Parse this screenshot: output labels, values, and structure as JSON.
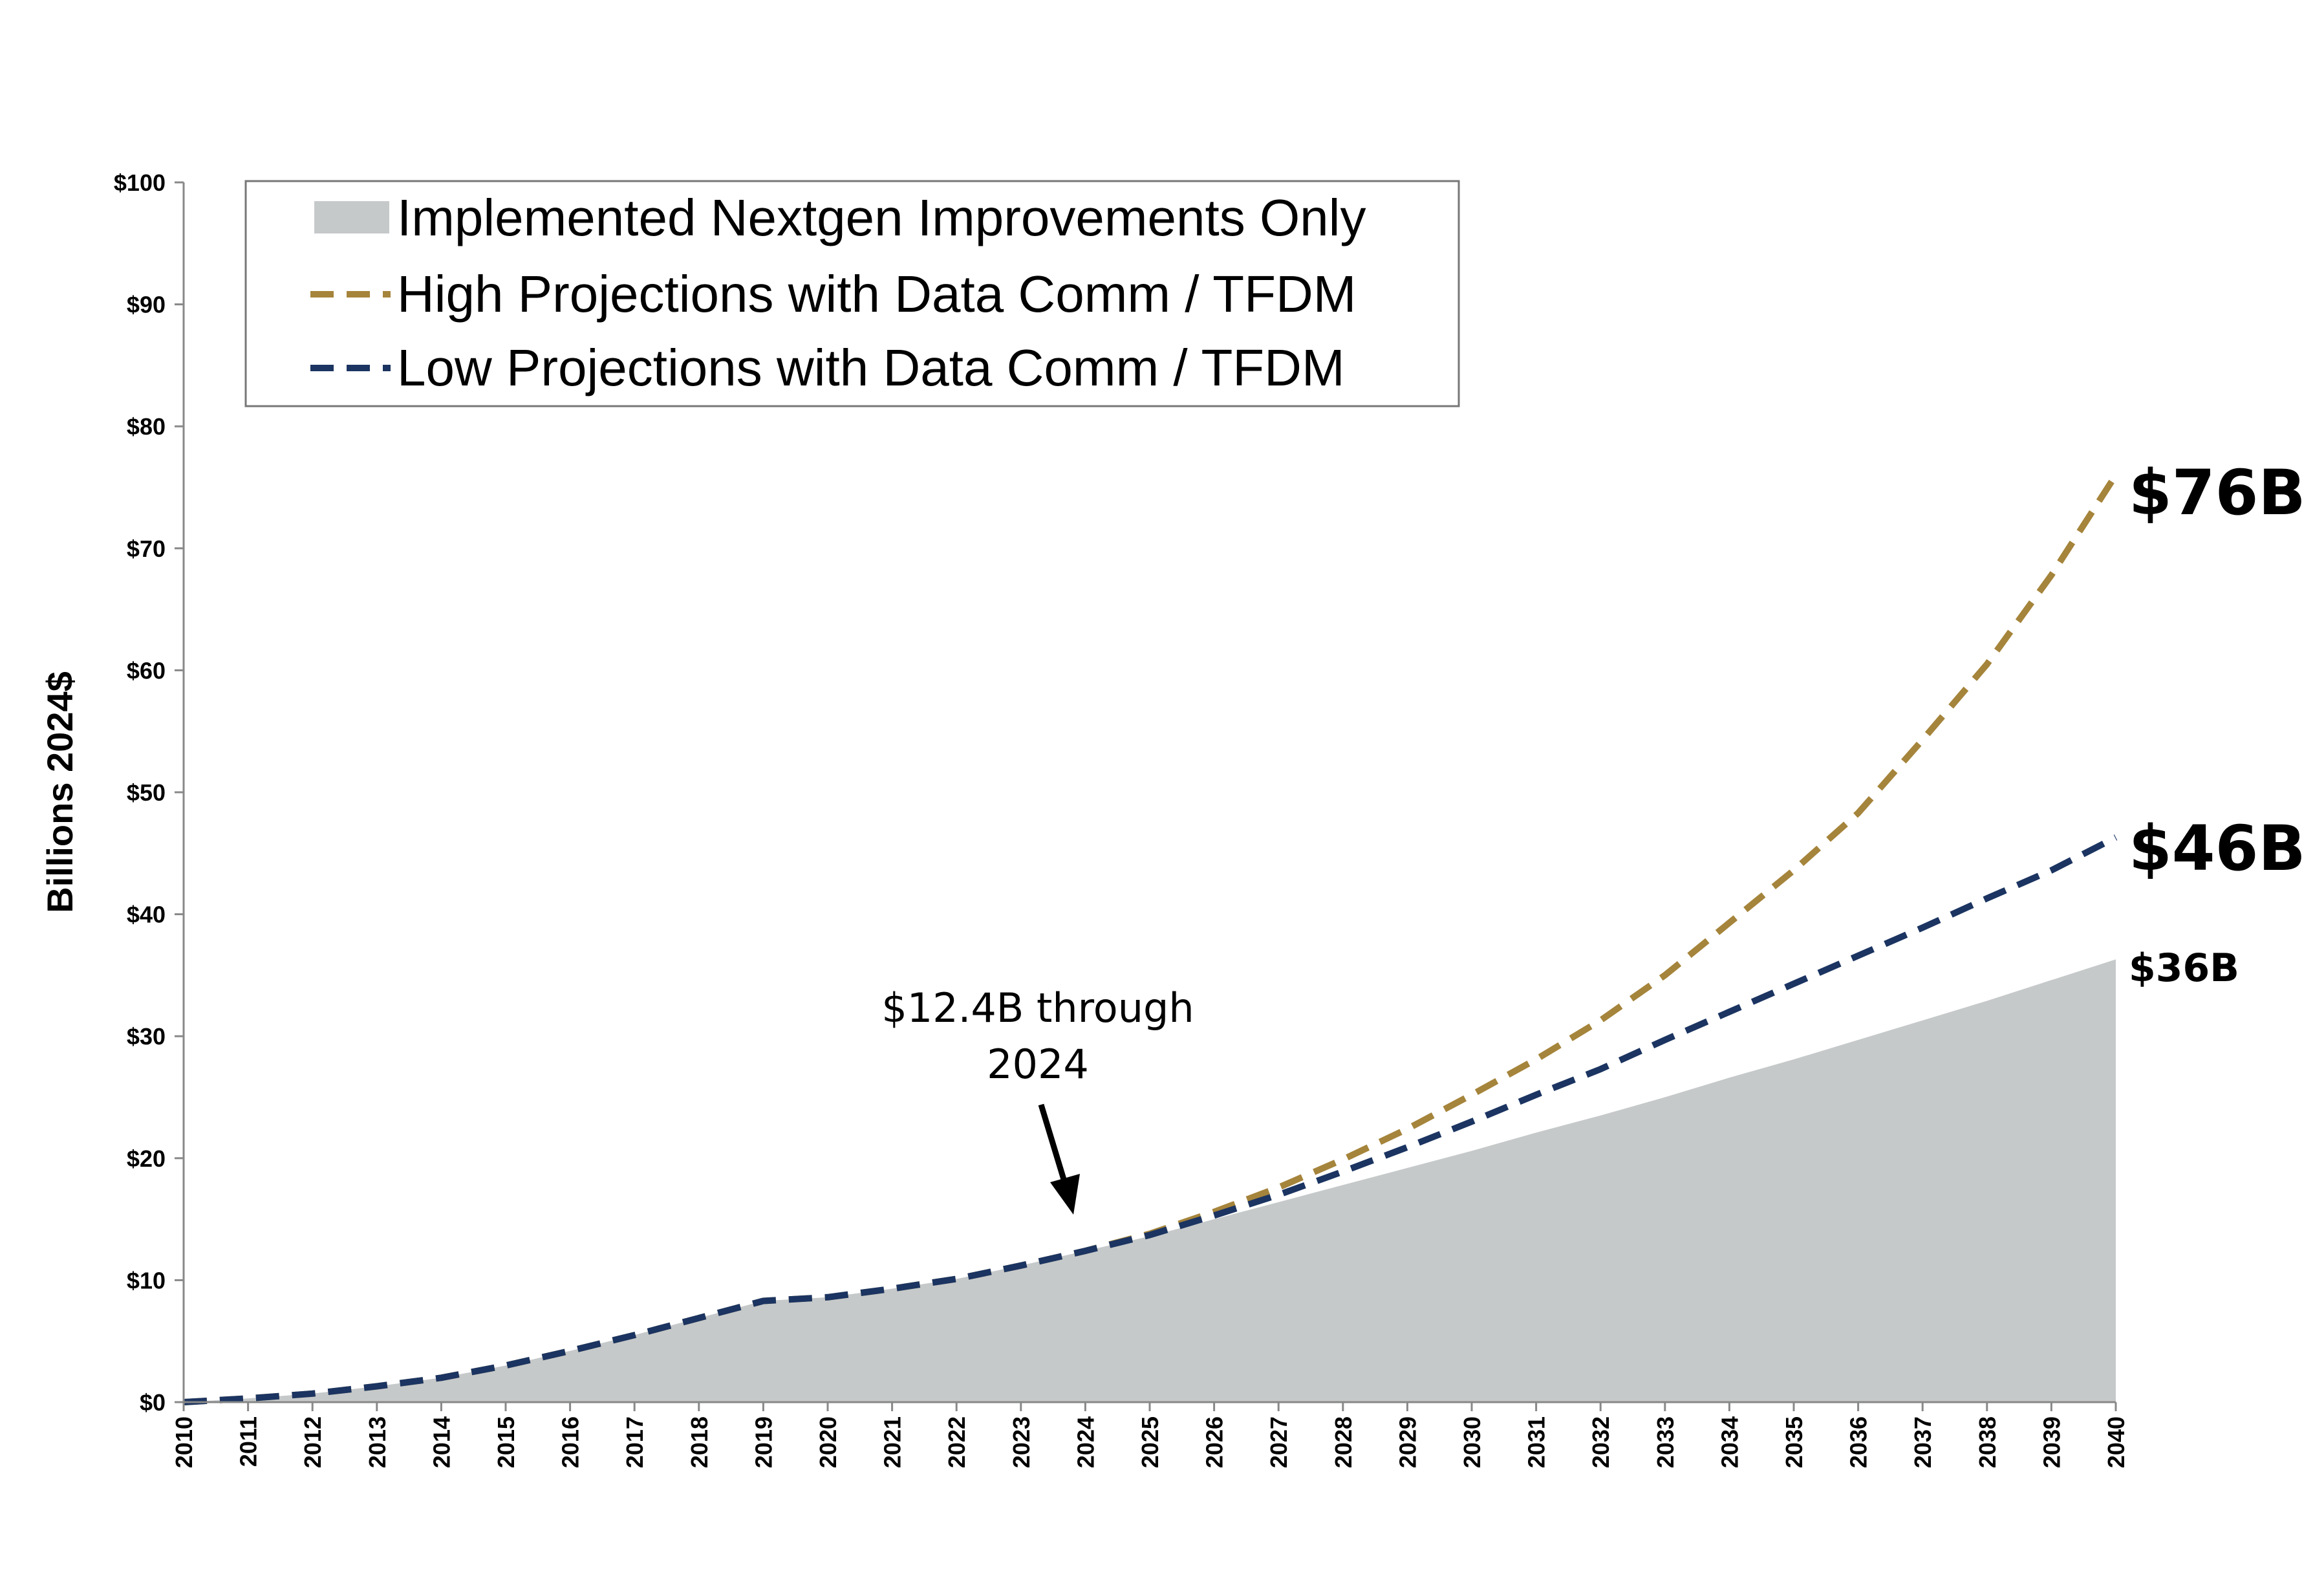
{
  "chart_data": {
    "type": "area",
    "ylabel": "Billions 2024$",
    "xlabel": "",
    "ylim": [
      0,
      100
    ],
    "y_ticks": [
      "$0",
      "$10",
      "$20",
      "$30",
      "$40",
      "$50",
      "$60",
      "$70",
      "$80",
      "$90",
      "$100"
    ],
    "y_tick_values": [
      0,
      10,
      20,
      30,
      40,
      50,
      60,
      70,
      80,
      90,
      100
    ],
    "x": [
      "2010",
      "2011",
      "2012",
      "2013",
      "2014",
      "2015",
      "2016",
      "2017",
      "2018",
      "2019",
      "2020",
      "2021",
      "2022",
      "2023",
      "2024",
      "2025",
      "2026",
      "2027",
      "2028",
      "2029",
      "2030",
      "2031",
      "2032",
      "2033",
      "2034",
      "2035",
      "2036",
      "2037",
      "2038",
      "2039",
      "2040"
    ],
    "grid": false,
    "legend_position": "top-left",
    "series": [
      {
        "name": "Implemented Nextgen Improvements Only",
        "style": "area",
        "color": "#c6c9ca",
        "values": [
          0,
          0.3,
          0.7,
          1.3,
          2.0,
          3.0,
          4.2,
          5.5,
          6.9,
          8.3,
          8.6,
          9.3,
          10.1,
          11.2,
          12.4,
          13.6,
          15.0,
          16.4,
          17.8,
          19.2,
          20.6,
          22.1,
          23.5,
          25.0,
          26.6,
          28.1,
          29.7,
          31.3,
          32.9,
          34.6,
          36.3
        ]
      },
      {
        "name": "High Projections with Data Comm / TFDM",
        "style": "dashed-line",
        "color": "#a5843b",
        "values": [
          0,
          0.3,
          0.7,
          1.3,
          2.0,
          3.0,
          4.2,
          5.5,
          6.9,
          8.3,
          8.6,
          9.3,
          10.1,
          11.2,
          12.4,
          13.8,
          15.6,
          17.6,
          19.9,
          22.4,
          25.2,
          28.1,
          31.3,
          35.0,
          39.3,
          43.6,
          48.3,
          54.3,
          60.5,
          67.8,
          76.0
        ]
      },
      {
        "name": "Low Projections with Data Comm / TFDM",
        "style": "dashed-line",
        "color": "#1b3461",
        "values": [
          0,
          0.3,
          0.7,
          1.3,
          2.0,
          3.0,
          4.2,
          5.5,
          6.9,
          8.3,
          8.6,
          9.3,
          10.1,
          11.2,
          12.4,
          13.7,
          15.3,
          17.0,
          18.9,
          20.9,
          23.0,
          25.2,
          27.3,
          29.7,
          32.0,
          34.3,
          36.6,
          38.9,
          41.3,
          43.6,
          46.3
        ]
      }
    ],
    "end_labels": [
      {
        "text": "$76B",
        "series": 1,
        "value": 76
      },
      {
        "text": "$46B",
        "series": 2,
        "value": 46
      },
      {
        "text": "$36B",
        "series": 0,
        "value": 36.3
      }
    ],
    "annotation": {
      "lines": [
        "$12.4B through",
        "2024"
      ],
      "arrow_to": {
        "x": "2024",
        "y": 12.4
      }
    }
  }
}
